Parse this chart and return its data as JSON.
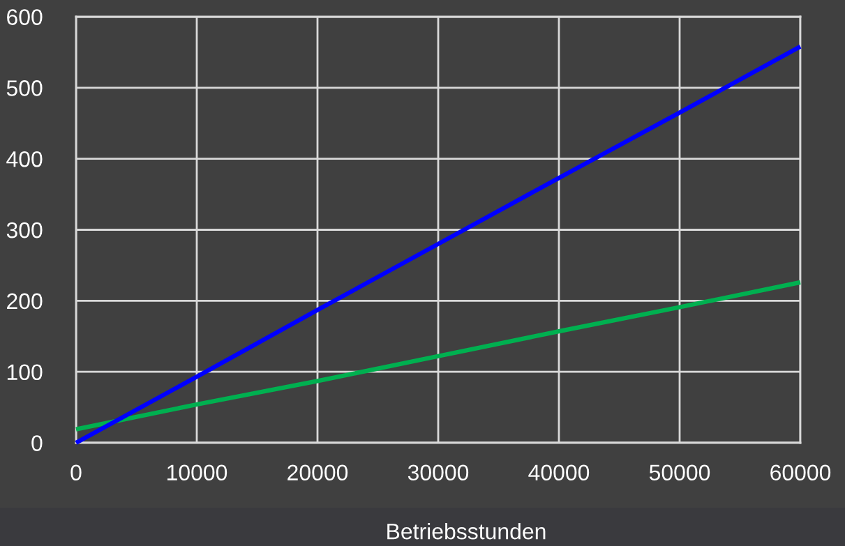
{
  "chart_data": {
    "type": "line",
    "xlabel": "Betriebsstunden",
    "x": [
      0,
      10000,
      20000,
      30000,
      40000,
      50000,
      60000
    ],
    "series": [
      {
        "color": "#00b050",
        "values": [
          19,
          54,
          87,
          122,
          157,
          191,
          226
        ]
      },
      {
        "color": "#0000ff",
        "values": [
          0,
          93,
          187,
          280,
          373,
          465,
          558
        ]
      }
    ],
    "xlim": [
      0,
      60000
    ],
    "ylim": [
      0,
      600
    ],
    "xticks": [
      0,
      10000,
      20000,
      30000,
      40000,
      50000,
      60000
    ],
    "yticks": [
      0,
      100,
      200,
      300,
      400,
      500,
      600
    ],
    "grid": true,
    "line_style": "solid"
  }
}
